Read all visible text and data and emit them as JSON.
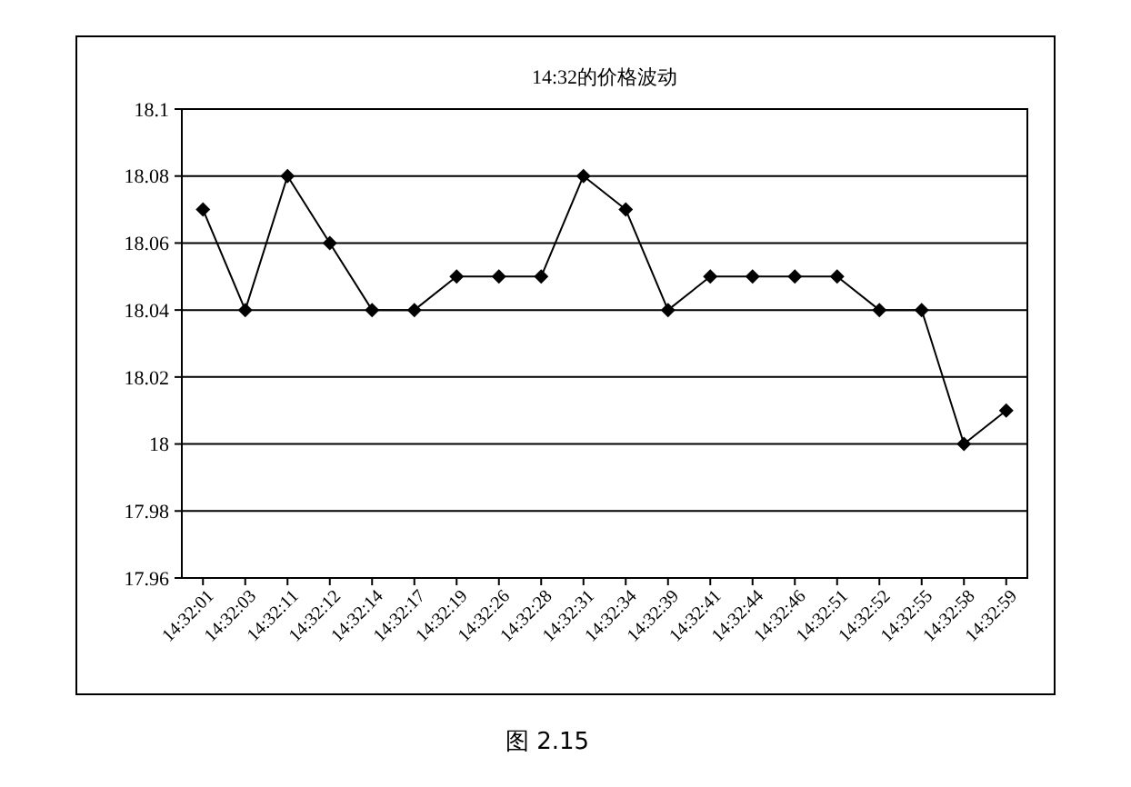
{
  "chart_data": {
    "type": "line",
    "title": "14:32的价格波动",
    "categories": [
      "14:32:01",
      "14:32:03",
      "14:32:11",
      "14:32:12",
      "14:32:14",
      "14:32:17",
      "14:32:19",
      "14:32:26",
      "14:32:28",
      "14:32:31",
      "14:32:34",
      "14:32:39",
      "14:32:41",
      "14:32:44",
      "14:32:46",
      "14:32:51",
      "14:32:52",
      "14:32:55",
      "14:32:58",
      "14:32:59"
    ],
    "series": [
      {
        "color": "#000000",
        "values": [
          18.07,
          18.04,
          18.08,
          18.06,
          18.04,
          18.04,
          18.05,
          18.05,
          18.05,
          18.08,
          18.07,
          18.04,
          18.05,
          18.05,
          18.05,
          18.05,
          18.04,
          18.04,
          18,
          18.01
        ]
      }
    ],
    "ylim": [
      17.96,
      18.1
    ],
    "yticks": [
      17.96,
      17.98,
      18,
      18.02,
      18.04,
      18.06,
      18.08,
      18.1
    ],
    "grid": "y",
    "marker": "diamond",
    "line_style": "solid",
    "annotations": [
      "图 2.15"
    ]
  }
}
